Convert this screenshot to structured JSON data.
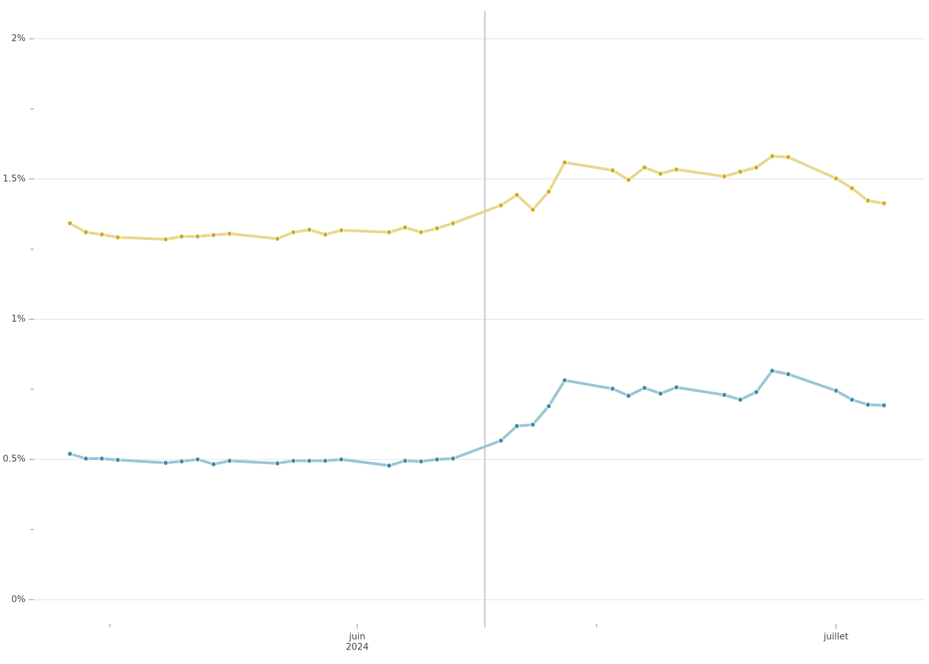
{
  "chart_data": {
    "type": "line",
    "x": [
      "2024-05-14",
      "2024-05-15",
      "2024-05-16",
      "2024-05-17",
      "2024-05-20",
      "2024-05-21",
      "2024-05-22",
      "2024-05-23",
      "2024-05-24",
      "2024-05-27",
      "2024-05-28",
      "2024-05-29",
      "2024-05-30",
      "2024-05-31",
      "2024-06-03",
      "2024-06-04",
      "2024-06-05",
      "2024-06-06",
      "2024-06-07",
      "2024-06-10",
      "2024-06-11",
      "2024-06-12",
      "2024-06-13",
      "2024-06-14",
      "2024-06-17",
      "2024-06-18",
      "2024-06-19",
      "2024-06-20",
      "2024-06-21",
      "2024-06-24",
      "2024-06-25",
      "2024-06-26",
      "2024-06-27",
      "2024-06-28",
      "2024-07-01",
      "2024-07-02",
      "2024-07-03",
      "2024-07-04"
    ],
    "series": [
      {
        "color": "#e8d78f",
        "marker_color": "#d4ac1c",
        "values": [
          1.342,
          1.31,
          1.302,
          1.292,
          1.285,
          1.295,
          1.295,
          1.3,
          1.305,
          1.287,
          1.31,
          1.319,
          1.302,
          1.317,
          1.31,
          1.327,
          1.31,
          1.324,
          1.342,
          1.406,
          1.443,
          1.391,
          1.455,
          1.559,
          1.531,
          1.497,
          1.541,
          1.519,
          1.534,
          1.509,
          1.526,
          1.541,
          1.581,
          1.578,
          1.502,
          1.467,
          1.423,
          1.413
        ]
      },
      {
        "color": "#9cc5d6",
        "marker_color": "#3a8fab",
        "values": [
          0.52,
          0.503,
          0.503,
          0.498,
          0.488,
          0.493,
          0.5,
          0.483,
          0.495,
          0.486,
          0.495,
          0.495,
          0.495,
          0.5,
          0.478,
          0.495,
          0.493,
          0.5,
          0.503,
          0.567,
          0.619,
          0.624,
          0.69,
          0.782,
          0.752,
          0.727,
          0.755,
          0.735,
          0.757,
          0.73,
          0.713,
          0.74,
          0.816,
          0.804,
          0.745,
          0.713,
          0.695,
          0.693
        ]
      }
    ],
    "xlim": [
      "2024-05-12",
      "2024-07-06"
    ],
    "xticks": [
      {
        "value": "2024-06-01",
        "label": [
          "juin",
          "2024"
        ]
      },
      {
        "value": "2024-07-01",
        "label": [
          "juillet"
        ]
      }
    ],
    "xminorticks": [
      "2024-05-16T12:00:00Z",
      "2024-06-16"
    ],
    "vline_x": "2024-06-09",
    "ylim": [
      -0.1,
      2.1
    ],
    "yticks": [
      {
        "value": 0,
        "label": "0%"
      },
      {
        "value": 0.5,
        "label": "0.5%"
      },
      {
        "value": 1,
        "label": "1%"
      },
      {
        "value": 1.5,
        "label": "1.5%"
      },
      {
        "value": 2,
        "label": "2%"
      }
    ],
    "yminorticks": [
      0.25,
      0.75,
      1.25,
      1.75
    ],
    "grid": true
  }
}
